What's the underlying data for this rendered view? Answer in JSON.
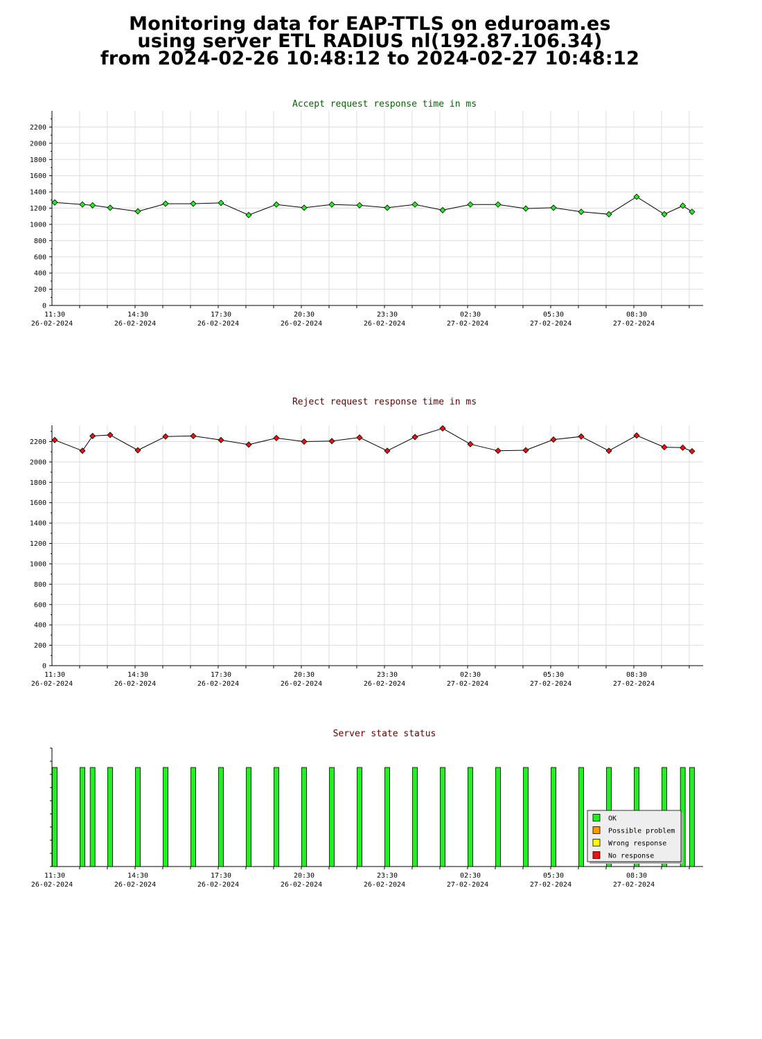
{
  "page": {
    "title_lines": [
      "Monitoring data for EAP-TTLS on eduroam.es",
      "using server ETL RADIUS nl(192.87.106.34)",
      "from 2024-02-26 10:48:12 to 2024-02-27 10:48:12"
    ]
  },
  "x_ticks": [
    {
      "time": "11:30",
      "date": "26-02-2024"
    },
    {
      "time": "14:30",
      "date": "26-02-2024"
    },
    {
      "time": "17:30",
      "date": "26-02-2024"
    },
    {
      "time": "20:30",
      "date": "26-02-2024"
    },
    {
      "time": "23:30",
      "date": "26-02-2024"
    },
    {
      "time": "02:30",
      "date": "27-02-2024"
    },
    {
      "time": "05:30",
      "date": "27-02-2024"
    },
    {
      "time": "08:30",
      "date": "27-02-2024"
    }
  ],
  "chart_data": [
    {
      "type": "line",
      "title": "Accept request response time in ms",
      "title_color": "#006600",
      "marker_color": "#22ee22",
      "x": [
        "2024-02-26 11:30",
        "2024-02-26 12:30",
        "2024-02-26 12:52",
        "2024-02-26 13:30",
        "2024-02-26 14:30",
        "2024-02-26 15:30",
        "2024-02-26 16:30",
        "2024-02-26 17:30",
        "2024-02-26 18:30",
        "2024-02-26 19:30",
        "2024-02-26 20:30",
        "2024-02-26 21:30",
        "2024-02-26 22:30",
        "2024-02-26 23:30",
        "2024-02-27 00:30",
        "2024-02-27 01:30",
        "2024-02-27 02:30",
        "2024-02-27 03:30",
        "2024-02-27 04:30",
        "2024-02-27 05:30",
        "2024-02-27 06:30",
        "2024-02-27 07:30",
        "2024-02-27 08:30",
        "2024-02-27 09:30",
        "2024-02-27 10:10",
        "2024-02-27 10:30"
      ],
      "values": [
        1270,
        1245,
        1235,
        1205,
        1160,
        1255,
        1255,
        1265,
        1115,
        1245,
        1205,
        1245,
        1235,
        1205,
        1245,
        1175,
        1245,
        1245,
        1195,
        1205,
        1155,
        1125,
        1340,
        1125,
        1230,
        1155
      ],
      "ylim": [
        0,
        2400
      ],
      "yticks": [
        0,
        200,
        400,
        600,
        800,
        1000,
        1200,
        1400,
        1600,
        1800,
        2000,
        2200
      ],
      "grid": true
    },
    {
      "type": "line",
      "title": "Reject request response time in ms",
      "title_color": "#660000",
      "marker_color": "#ee1111",
      "x": [
        "2024-02-26 11:30",
        "2024-02-26 12:30",
        "2024-02-26 12:52",
        "2024-02-26 13:30",
        "2024-02-26 14:30",
        "2024-02-26 15:30",
        "2024-02-26 16:30",
        "2024-02-26 17:30",
        "2024-02-26 18:30",
        "2024-02-26 19:30",
        "2024-02-26 20:30",
        "2024-02-26 21:30",
        "2024-02-26 22:30",
        "2024-02-26 23:30",
        "2024-02-27 00:30",
        "2024-02-27 01:30",
        "2024-02-27 02:30",
        "2024-02-27 03:30",
        "2024-02-27 04:30",
        "2024-02-27 05:30",
        "2024-02-27 06:30",
        "2024-02-27 07:30",
        "2024-02-27 08:30",
        "2024-02-27 09:30",
        "2024-02-27 10:10",
        "2024-02-27 10:30"
      ],
      "values": [
        2215,
        2110,
        2255,
        2265,
        2115,
        2250,
        2255,
        2215,
        2170,
        2235,
        2200,
        2205,
        2240,
        2110,
        2245,
        2330,
        2175,
        2110,
        2115,
        2220,
        2250,
        2110,
        2260,
        2145,
        2140,
        2105
      ],
      "ylim": [
        0,
        2360
      ],
      "yticks": [
        0,
        200,
        400,
        600,
        800,
        1000,
        1200,
        1400,
        1600,
        1800,
        2000,
        2200
      ],
      "grid": true
    },
    {
      "type": "bar",
      "title": "Server state status",
      "title_color": "#660000",
      "x": [
        "2024-02-26 11:30",
        "2024-02-26 12:30",
        "2024-02-26 12:52",
        "2024-02-26 13:30",
        "2024-02-26 14:30",
        "2024-02-26 15:30",
        "2024-02-26 16:30",
        "2024-02-26 17:30",
        "2024-02-26 18:30",
        "2024-02-26 19:30",
        "2024-02-26 20:30",
        "2024-02-26 21:30",
        "2024-02-26 22:30",
        "2024-02-26 23:30",
        "2024-02-27 00:30",
        "2024-02-27 01:30",
        "2024-02-27 02:30",
        "2024-02-27 03:30",
        "2024-02-27 04:30",
        "2024-02-27 05:30",
        "2024-02-27 06:30",
        "2024-02-27 07:30",
        "2024-02-27 08:30",
        "2024-02-27 09:30",
        "2024-02-27 10:10",
        "2024-02-27 10:30"
      ],
      "states": [
        "OK",
        "OK",
        "OK",
        "OK",
        "OK",
        "OK",
        "OK",
        "OK",
        "OK",
        "OK",
        "OK",
        "OK",
        "OK",
        "OK",
        "OK",
        "OK",
        "OK",
        "OK",
        "OK",
        "OK",
        "OK",
        "OK",
        "OK",
        "OK",
        "OK",
        "OK"
      ],
      "legend": [
        {
          "label": "OK",
          "color": "#22ee22"
        },
        {
          "label": "Possible problem",
          "color": "#ff9900"
        },
        {
          "label": "Wrong response",
          "color": "#ffff00"
        },
        {
          "label": "No response",
          "color": "#ee1111"
        }
      ],
      "legend_position": "bottom-right"
    }
  ]
}
